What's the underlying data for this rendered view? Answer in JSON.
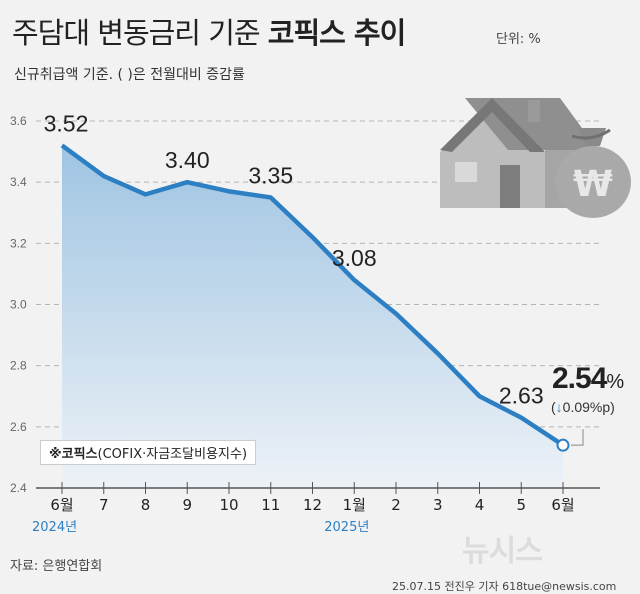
{
  "header": {
    "title_prefix": "주담대 변동금리 기준",
    "title_bold": "코픽스 추이",
    "unit": "단위: %",
    "subtitle": "신규취급액 기준. ( )은 전월대비 증감률"
  },
  "legend": {
    "bold": "※코픽스",
    "rest": "(COFIX·자금조달비용지수)"
  },
  "last_point": {
    "value": "2.54",
    "unit": "%",
    "change_open": "(",
    "arrow": "↓",
    "change": "0.09%p",
    "change_close": ")"
  },
  "years": [
    "2024년",
    "2025년"
  ],
  "footer": {
    "source": "자료: 은행연합회",
    "credit": "25.07.15 전진우 기자 618tue@newsis.com",
    "watermark": "뉴시스"
  },
  "colors": {
    "line": "#2d7fc4",
    "area_top": "#9fc4e2",
    "area_bottom": "#e6eef6",
    "grid": "#b5b5b5"
  },
  "chart_data": {
    "type": "area",
    "categories": [
      "6월",
      "7",
      "8",
      "9",
      "10",
      "11",
      "12",
      "1월",
      "2",
      "3",
      "4",
      "5",
      "6월"
    ],
    "values": [
      3.52,
      3.42,
      3.36,
      3.4,
      3.37,
      3.35,
      3.22,
      3.08,
      2.97,
      2.84,
      2.7,
      2.63,
      2.54
    ],
    "data_labels": [
      "3.52",
      null,
      null,
      "3.40",
      null,
      "3.35",
      null,
      "3.08",
      null,
      null,
      null,
      "2.63",
      null
    ],
    "y_ticks": [
      "2.4",
      "2.6",
      "2.8",
      "3.0",
      "3.2",
      "3.4",
      "3.6"
    ],
    "ylim": [
      2.4,
      3.6
    ],
    "grid": true,
    "title": "주담대 변동금리 기준 코픽스 추이",
    "xlabel": "",
    "ylabel": ""
  }
}
